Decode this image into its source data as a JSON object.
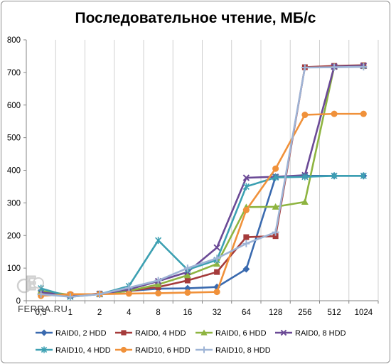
{
  "chart_data": {
    "type": "line",
    "title": "Последовательное чтение, МБ/с",
    "xlabel": "",
    "ylabel": "",
    "categories": [
      "0,5",
      "1",
      "2",
      "4",
      "8",
      "16",
      "32",
      "64",
      "128",
      "256",
      "512",
      "1024"
    ],
    "ylim": [
      0,
      800
    ],
    "yticks": [
      0,
      100,
      200,
      300,
      400,
      500,
      600,
      700,
      800
    ],
    "grid": "vertical",
    "legend": "bottom",
    "series": [
      {
        "name": "RAID0, 2 HDD",
        "color": "#3A6AAF",
        "marker": "diamond",
        "values": [
          18,
          15,
          20,
          30,
          37,
          38,
          42,
          97,
          380,
          383,
          383,
          383
        ]
      },
      {
        "name": "RAID0, 4 HDD",
        "color": "#A53B3B",
        "marker": "square",
        "values": [
          20,
          15,
          22,
          30,
          42,
          62,
          88,
          195,
          198,
          716,
          720,
          722
        ]
      },
      {
        "name": "RAID0, 6 HDD",
        "color": "#8EB440",
        "marker": "triangle",
        "values": [
          30,
          18,
          20,
          30,
          50,
          78,
          113,
          287,
          288,
          303,
          718,
          720
        ]
      },
      {
        "name": "RAID0, 8 HDD",
        "color": "#6B4A96",
        "marker": "x",
        "values": [
          25,
          17,
          20,
          35,
          60,
          88,
          163,
          377,
          380,
          385,
          718,
          720
        ]
      },
      {
        "name": "RAID10, 4 HDD",
        "color": "#3CA0B2",
        "marker": "asterisk",
        "values": [
          38,
          12,
          20,
          45,
          185,
          95,
          125,
          350,
          378,
          380,
          383,
          383
        ]
      },
      {
        "name": "RAID10, 6 HDD",
        "color": "#F0913A",
        "marker": "circle",
        "values": [
          15,
          20,
          20,
          22,
          23,
          25,
          27,
          278,
          405,
          570,
          573,
          573
        ]
      },
      {
        "name": "RAID10, 8 HDD",
        "color": "#9EB4D6",
        "marker": "plus",
        "values": [
          20,
          12,
          20,
          40,
          62,
          100,
          130,
          175,
          210,
          715,
          716,
          717
        ]
      }
    ]
  },
  "watermark_text": "FERRA.RU"
}
